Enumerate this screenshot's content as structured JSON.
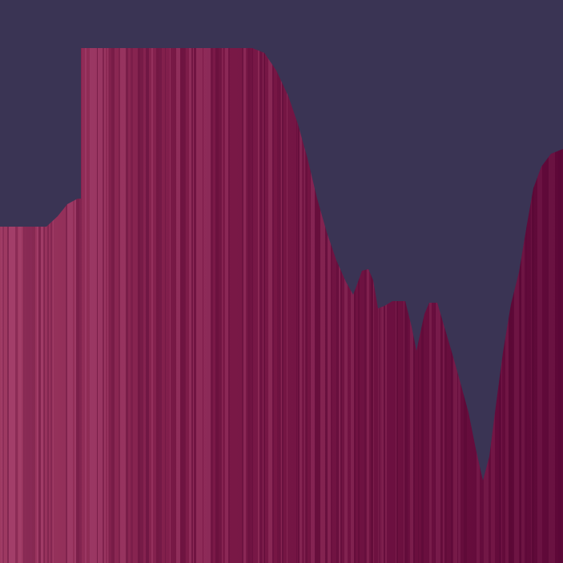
{
  "scene": {
    "colors": {
      "sky": "#3a3454",
      "terrain_light": "#9e3a62",
      "terrain_mid": "#7c1a48",
      "terrain_dark": "#5e0838",
      "stripe_highlight": "#a84470",
      "stripe_shadow": "#520632"
    }
  }
}
